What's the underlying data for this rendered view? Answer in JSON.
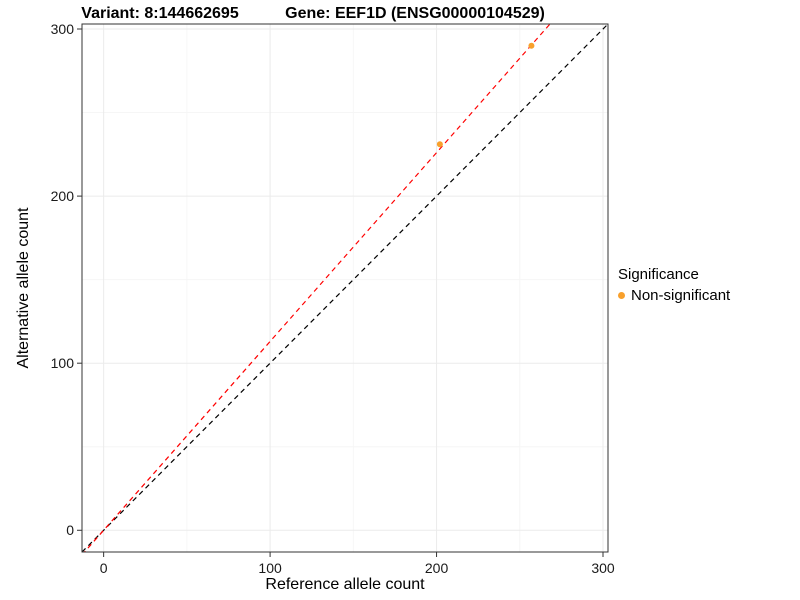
{
  "chart_data": {
    "type": "scatter",
    "title_left": "Variant: 8:144662695",
    "title_right": "Gene: EEF1D (ENSG00000104529)",
    "xlabel": "Reference allele count",
    "ylabel": "Alternative allele count",
    "xlim": [
      -13,
      303
    ],
    "ylim": [
      -13,
      303
    ],
    "xticks": [
      0,
      100,
      200,
      300
    ],
    "yticks": [
      0,
      100,
      200,
      300
    ],
    "minor_ticks": [
      50,
      150,
      250
    ],
    "points": [
      {
        "x": 202,
        "y": 231,
        "series": "Non-significant"
      },
      {
        "x": 257,
        "y": 290,
        "series": "Non-significant"
      }
    ],
    "lines": [
      {
        "name": "identity-line",
        "slope": 1.0,
        "intercept": 0,
        "color": "#000000",
        "dash": "5 4"
      },
      {
        "name": "fit-line",
        "slope": 1.13,
        "intercept": 0,
        "color": "#FF0000",
        "dash": "5 4"
      }
    ],
    "legend": {
      "title": "Significance",
      "items": [
        {
          "label": "Non-significant",
          "color": "#F8A02C"
        }
      ]
    },
    "grid": true,
    "legend_position": "right",
    "colors": {
      "point": "#F8A02C",
      "grid_major": "#EBEBEB",
      "grid_minor": "#F6F6F6",
      "panel_border": "#333333",
      "tick": "#333333"
    }
  }
}
